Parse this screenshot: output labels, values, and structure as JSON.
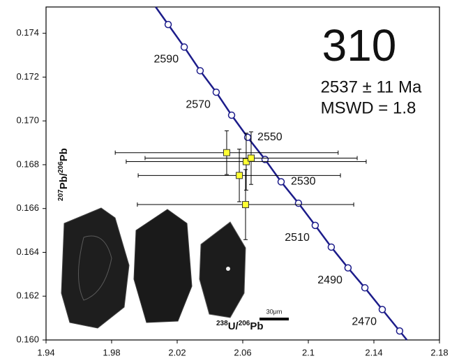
{
  "chart_data": {
    "type": "concordia",
    "title": "310",
    "annotations": [
      "2537 ± 11 Ma",
      "MSWD = 1.8"
    ],
    "x_label": [
      "238",
      "U/",
      "206",
      "Pb"
    ],
    "y_label": [
      "207",
      "Pb/",
      "206",
      "Pb"
    ],
    "scale_bar": "30μm",
    "xlim": [
      1.94,
      2.18
    ],
    "ylim": [
      0.16,
      0.1752
    ],
    "xticks": [
      1.94,
      1.98,
      2.02,
      2.06,
      2.1,
      2.14,
      2.18
    ],
    "yticks": [
      {
        "value": 0.16,
        "label": "0.160"
      },
      0.162,
      0.164,
      0.166,
      0.168,
      {
        "value": 0.17,
        "label": "0.170"
      },
      0.172,
      0.174
    ],
    "concordia": {
      "color": "#1c1c8a",
      "x": [
        2.0145,
        2.0243,
        2.034,
        2.0438,
        2.0532,
        2.063,
        2.0736,
        2.0834,
        2.094,
        2.1042,
        2.114,
        2.1242,
        2.1345,
        2.1451,
        2.1557
      ],
      "y": [
        0.1744,
        0.17337,
        0.17229,
        0.17131,
        0.17026,
        0.16925,
        0.16824,
        0.16722,
        0.16624,
        0.16523,
        0.16424,
        0.16329,
        0.16238,
        0.16139,
        0.16041
      ],
      "labels": [
        null,
        2590,
        null,
        2570,
        null,
        2550,
        null,
        2530,
        null,
        2510,
        null,
        2490,
        null,
        2470,
        null
      ]
    },
    "points": {
      "color": "#ffff33",
      "x": [
        2.0502,
        2.0621,
        2.0651,
        2.0579,
        2.0617
      ],
      "y": [
        0.16855,
        0.16814,
        0.1683,
        0.16751,
        0.16618
      ],
      "x_err": [
        0.068,
        0.0732,
        0.0647,
        0.0617,
        0.066
      ],
      "y_err": [
        0.001,
        0.0013,
        0.0012,
        0.0012,
        0.0016
      ]
    }
  }
}
